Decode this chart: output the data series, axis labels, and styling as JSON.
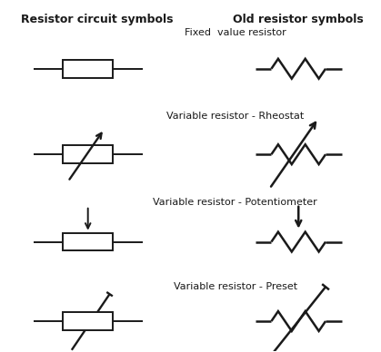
{
  "title_left": "Resistor circuit symbols",
  "title_right": "Old resistor symbols",
  "labels": [
    "Fixed  value resistor",
    "Variable resistor - Rheostat",
    "Variable resistor - Potentiometer",
    "Variable resistor - Preset"
  ],
  "background_color": "#ffffff",
  "line_color": "#1a1a1a",
  "title_fontsize": 9,
  "label_fontsize": 8
}
